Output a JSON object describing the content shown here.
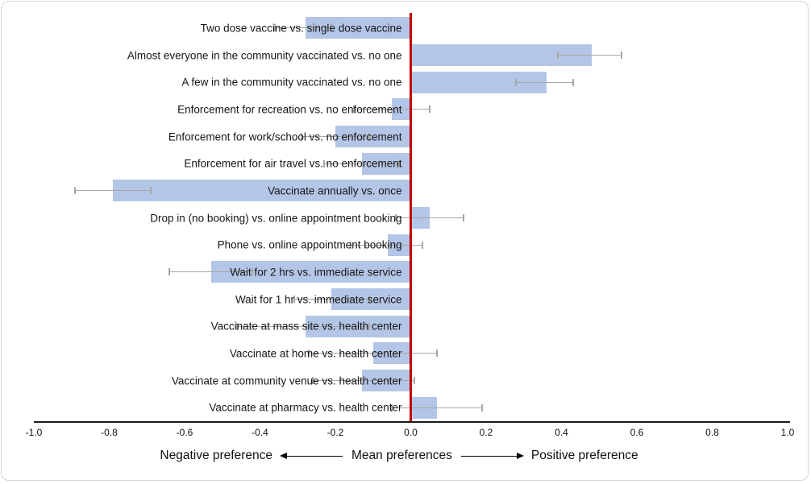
{
  "figure": {
    "background": "#ffffff",
    "border_color": "#d6d6d6"
  },
  "chart_data": {
    "type": "bar",
    "orientation": "horizontal",
    "title": "",
    "xlabel_left": "Negative preference",
    "xlabel_center": "Mean preferences",
    "xlabel_right": "Positive preference",
    "xlim": [
      -1.0,
      1.0
    ],
    "x_ticks": [
      "-1.0",
      "-0.8",
      "-0.6",
      "-0.4",
      "-0.2",
      "0.0",
      "0.2",
      "0.4",
      "0.6",
      "0.8",
      "1.0"
    ],
    "grid": false,
    "legend": false,
    "bar_color": "#b4c6e7",
    "zero_line_color": "#c00000",
    "error_bar_color": "#a6a6a6",
    "categories": [
      "Two dose vaccine vs. single dose vaccine",
      "Almost everyone in the community vaccinated vs. no one",
      "A few in the community vaccinated vs. no one",
      "Enforcement for recreation vs. no enforcement",
      "Enforcement for work/school vs. no enforcement",
      "Enforcement for air travel vs. no enforcement",
      "Vaccinate annually vs. once",
      "Drop in (no booking) vs. online appointment booking",
      "Phone vs. online appointment booking",
      "Wait for 2 hrs vs. immediate service",
      "Wait for 1 hr vs. immediate service",
      "Vaccinate at mass site vs. health center",
      "Vaccinate at home vs. health center",
      "Vaccinate at community venue vs. health center",
      "Vaccinate at pharmacy vs. health center"
    ],
    "values": [
      -0.28,
      0.48,
      0.36,
      -0.05,
      -0.2,
      -0.13,
      -0.79,
      0.05,
      -0.06,
      -0.53,
      -0.21,
      -0.28,
      -0.1,
      -0.13,
      0.07
    ],
    "error_low": [
      -0.36,
      0.39,
      0.28,
      -0.15,
      -0.29,
      -0.23,
      -0.89,
      -0.04,
      -0.16,
      -0.64,
      -0.31,
      -0.46,
      -0.27,
      -0.26,
      -0.05
    ],
    "error_high": [
      -0.21,
      0.56,
      0.43,
      0.05,
      -0.11,
      -0.03,
      -0.69,
      0.14,
      0.03,
      -0.42,
      -0.11,
      -0.11,
      0.07,
      0.01,
      0.19
    ]
  }
}
